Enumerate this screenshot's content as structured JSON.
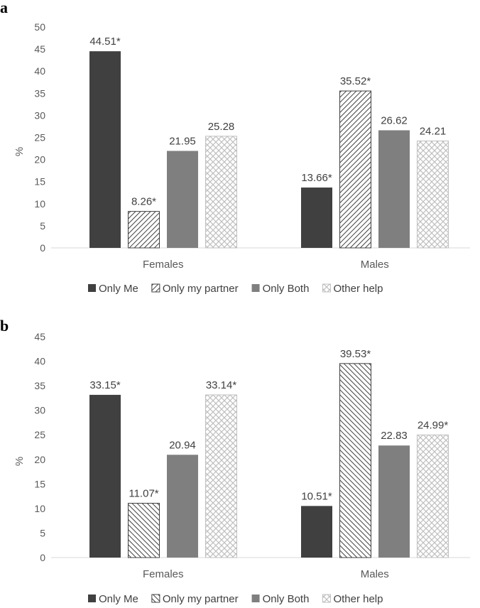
{
  "chart_data": [
    {
      "panel": "a",
      "type": "bar",
      "ylabel": "%",
      "ylim": [
        0,
        50
      ],
      "yticks": [
        0,
        5,
        10,
        15,
        20,
        25,
        30,
        35,
        40,
        45,
        50
      ],
      "categories": [
        "Females",
        "Males"
      ],
      "series": [
        {
          "name": "Only Me",
          "color": "#404040",
          "pattern": "solid",
          "values": [
            44.51,
            13.66
          ],
          "labels": [
            "44.51*",
            "13.66*"
          ]
        },
        {
          "name": "Only my partner",
          "color": "#404040",
          "pattern": "diag-right",
          "values": [
            8.26,
            35.52
          ],
          "labels": [
            "8.26*",
            "35.52*"
          ]
        },
        {
          "name": "Only Both",
          "color": "#7f7f7f",
          "pattern": "solid",
          "values": [
            21.95,
            26.62
          ],
          "labels": [
            "21.95",
            "26.62"
          ]
        },
        {
          "name": "Other help",
          "color": "#bfbfbf",
          "pattern": "crosshatch",
          "values": [
            25.28,
            24.21
          ],
          "labels": [
            "25.28",
            "24.21"
          ]
        }
      ]
    },
    {
      "panel": "b",
      "type": "bar",
      "ylabel": "%",
      "ylim": [
        0,
        45
      ],
      "yticks": [
        0,
        5,
        10,
        15,
        20,
        25,
        30,
        35,
        40,
        45
      ],
      "categories": [
        "Females",
        "Males"
      ],
      "series": [
        {
          "name": "Only Me",
          "color": "#404040",
          "pattern": "solid",
          "values": [
            33.15,
            10.51
          ],
          "labels": [
            "33.15*",
            "10.51*"
          ]
        },
        {
          "name": "Only my partner",
          "color": "#404040",
          "pattern": "diag-left",
          "values": [
            11.07,
            39.53
          ],
          "labels": [
            "11.07*",
            "39.53*"
          ]
        },
        {
          "name": "Only Both",
          "color": "#7f7f7f",
          "pattern": "solid",
          "values": [
            20.94,
            22.83
          ],
          "labels": [
            "20.94",
            "22.83"
          ]
        },
        {
          "name": "Other help",
          "color": "#bfbfbf",
          "pattern": "crosshatch",
          "values": [
            33.14,
            24.99
          ],
          "labels": [
            "33.14*",
            "24.99*"
          ]
        }
      ]
    }
  ]
}
